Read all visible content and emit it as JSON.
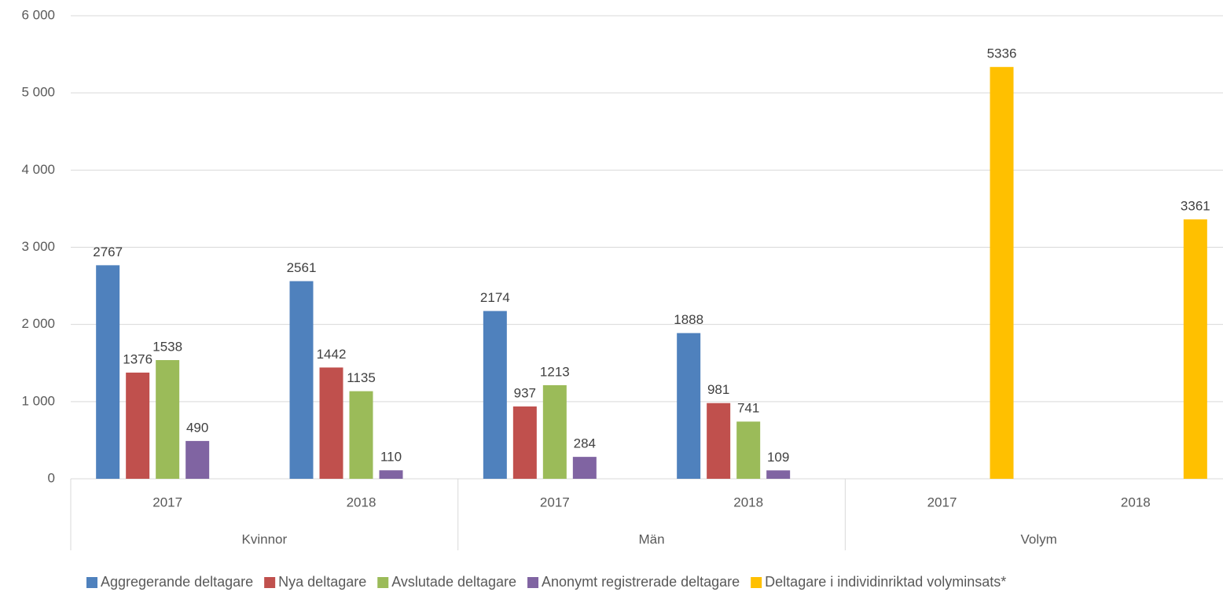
{
  "chart_data": {
    "type": "bar",
    "categories": [
      "2017",
      "2018",
      "2017",
      "2018",
      "2017",
      "2018"
    ],
    "groups": [
      "Kvinnor",
      "Män",
      "Volym"
    ],
    "series": [
      {
        "name": "Aggregerande deltagare",
        "color": "#4f81bd",
        "values": [
          2767,
          2561,
          2174,
          1888,
          null,
          null
        ]
      },
      {
        "name": "Nya deltagare",
        "color": "#c0504d",
        "values": [
          1376,
          1442,
          937,
          981,
          null,
          null
        ]
      },
      {
        "name": "Avslutade deltagare",
        "color": "#9bbb59",
        "values": [
          1538,
          1135,
          1213,
          741,
          null,
          null
        ]
      },
      {
        "name": "Anonymt registrerade deltagare",
        "color": "#8064a2",
        "values": [
          490,
          110,
          284,
          109,
          null,
          null
        ]
      },
      {
        "name": "Deltagare i individinriktad volyminsats*",
        "color": "#ffc000",
        "values": [
          null,
          null,
          null,
          null,
          5336,
          3361
        ]
      }
    ],
    "ylim": [
      0,
      6000
    ],
    "yticks": [
      0,
      {
        "value": 1000,
        "label": "1 000"
      },
      {
        "value": 2000,
        "label": "2 000"
      },
      {
        "value": 3000,
        "label": "3 000"
      },
      {
        "value": 4000,
        "label": "4 000"
      },
      {
        "value": 5000,
        "label": "5 000"
      },
      {
        "value": 6000,
        "label": "6 000"
      }
    ],
    "grid": true,
    "legend": "bottom"
  }
}
